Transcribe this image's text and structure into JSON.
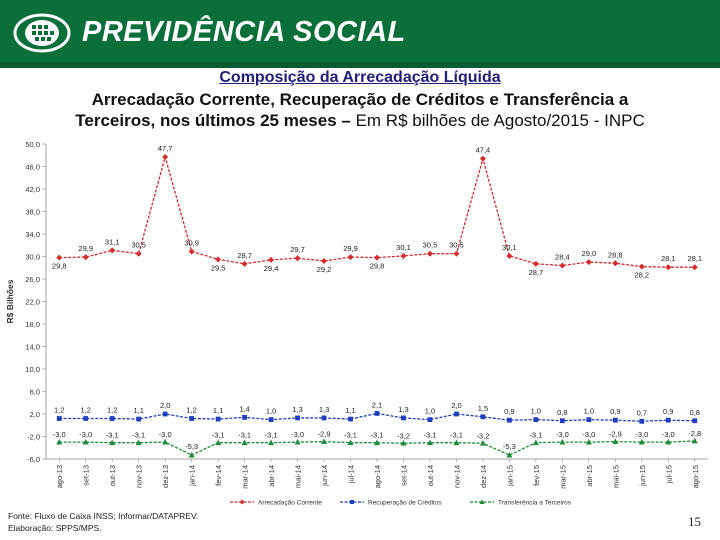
{
  "header": {
    "brand": "PREVIDÊNCIA SOCIAL",
    "colors": {
      "banner": "#0b6f3a"
    }
  },
  "titles": {
    "line1": "Composição da Arrecadação Líquida",
    "line2": "Arrecadação Corrente, Recuperação de Créditos e Transferência a",
    "line3_bold": "Terceiros, nos últimos 25 meses –",
    "line3_rest": " Em R$ bilhões de Agosto/2015 - INPC"
  },
  "footer": {
    "source": "Fonte: Fluxo de Caixa INSS; Informar/DATAPREV.",
    "prepared": "Elaboração: SPPS/MPS.",
    "page": "15"
  },
  "chart_data": {
    "type": "line",
    "title": "Composição da Arrecadação Líquida",
    "xlabel": "",
    "ylabel": "R$ Bilhões",
    "ylim": [
      -6,
      50
    ],
    "yticks": [
      "50,0",
      "46,0",
      "42,0",
      "38,0",
      "34,0",
      "30,0",
      "26,0",
      "22,0",
      "18,0",
      "14,0",
      "10,0",
      "6,0",
      "2,0",
      "-2,0",
      "-6,0"
    ],
    "ytick_values": [
      50,
      46,
      42,
      38,
      34,
      30,
      26,
      22,
      18,
      14,
      10,
      6,
      2,
      -2,
      -6
    ],
    "categories": [
      "ago-13",
      "set-13",
      "out-13",
      "nov-13",
      "dez-13",
      "jan-14",
      "fev-14",
      "mar-14",
      "abr-14",
      "mai-14",
      "jun-14",
      "jul-14",
      "ago-14",
      "set-14",
      "out-14",
      "nov-14",
      "dez-14",
      "jan-15",
      "fev-15",
      "mar-15",
      "abr-15",
      "mai-15",
      "jun-15",
      "jul-15",
      "ago-15"
    ],
    "legend_position": "bottom",
    "series": [
      {
        "name": "Arrecadação Corrente",
        "color": "#d62c2c",
        "marker": "diamond",
        "values": [
          29.8,
          29.9,
          31.1,
          30.5,
          47.7,
          30.9,
          29.5,
          28.7,
          29.4,
          29.7,
          29.2,
          29.9,
          29.8,
          30.1,
          30.5,
          30.5,
          47.4,
          30.1,
          28.7,
          28.4,
          29.0,
          28.8,
          28.2,
          28.1,
          28.1
        ],
        "labels": [
          "29,8",
          "29,9",
          "31,1",
          "30,5",
          "47,7",
          "30,9",
          "29,5",
          "28,7",
          "29,4",
          "29,7",
          "29,2",
          "29,9",
          "29,8",
          "30,1",
          "30,5",
          "30,5",
          "47,4",
          "30,1",
          "28,7",
          "28,4",
          "29,0",
          "28,8",
          "28,2",
          "28,1",
          "28,1"
        ]
      },
      {
        "name": "Recuperação de Créditos",
        "color": "#1f3fbf",
        "marker": "square",
        "values": [
          1.2,
          1.2,
          1.2,
          1.1,
          2.0,
          1.2,
          1.1,
          1.4,
          1.0,
          1.3,
          1.3,
          1.1,
          2.1,
          1.3,
          1.0,
          2.0,
          1.5,
          0.9,
          1.0,
          0.8,
          1.0,
          0.9,
          0.7,
          0.9,
          0.8
        ],
        "labels": [
          "1,2",
          "1,2",
          "1,2",
          "1,1",
          "2,0",
          "1,2",
          "1,1",
          "1,4",
          "1,0",
          "1,3",
          "1,3",
          "1,1",
          "2,1",
          "1,3",
          "1,0",
          "2,0",
          "1,5",
          "0,9",
          "1,0",
          "0,8",
          "1,0",
          "0,9",
          "0,7",
          "0,9",
          "0,8"
        ]
      },
      {
        "name": "Transferência a Terceiros",
        "color": "#1f8a3a",
        "marker": "triangle",
        "values": [
          -3.0,
          -3.0,
          -3.1,
          -3.1,
          -3.0,
          -5.3,
          -3.1,
          -3.1,
          -3.1,
          -3.0,
          -2.9,
          -3.1,
          -3.1,
          -3.2,
          -3.1,
          -3.1,
          -3.2,
          -5.3,
          -3.1,
          -3.0,
          -3.0,
          -2.9,
          -3.0,
          -3.0,
          -2.8
        ],
        "labels": [
          "-3,0",
          "-3,0",
          "-3,1",
          "-3,1",
          "-3,0",
          "-5,3",
          "-3,1",
          "-3,1",
          "-3,1",
          "-3,0",
          "-2,9",
          "-3,1",
          "-3,1",
          "-3,2",
          "-3,1",
          "-3,1",
          "-3,2",
          "-5,3",
          "-3,1",
          "-3,0",
          "-3,0",
          "-2,9",
          "-3,0",
          "-3,0",
          "-2,8"
        ]
      }
    ]
  }
}
